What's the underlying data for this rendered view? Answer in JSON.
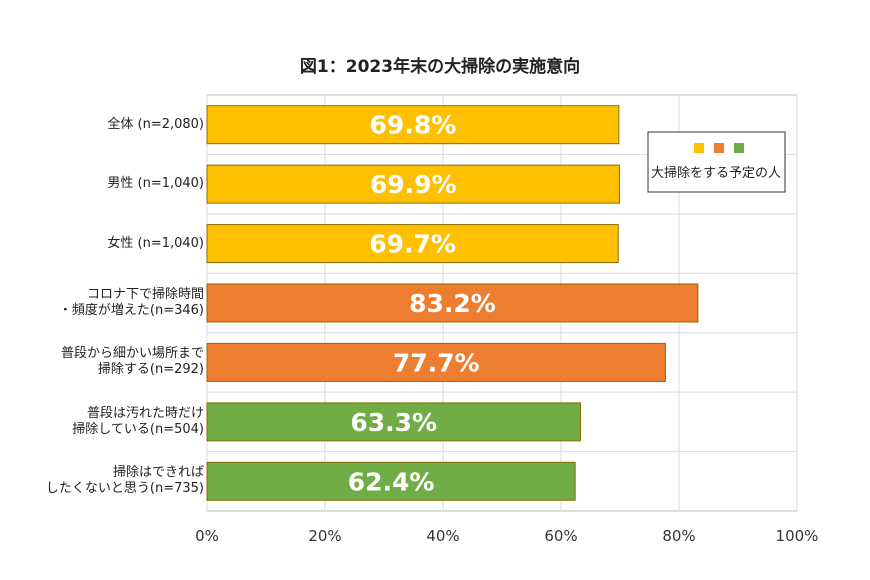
{
  "chart_data": {
    "type": "bar",
    "orientation": "horizontal",
    "title": "図1：2023年末の大掃除の実施意向",
    "categories": [
      "全体 (n=2,080)",
      "男性 (n=1,040)",
      "女性 (n=1,040)",
      "コロナ下で掃除時間\n・頻度が増えた(n=346)",
      "普段から細かい場所まで\n掃除する(n=292)",
      "普段は汚れた時だけ\n掃除している(n=504)",
      "掃除はできれば\nしたくないと思う(n=735)"
    ],
    "values": [
      69.8,
      69.9,
      69.7,
      83.2,
      77.7,
      63.3,
      62.4
    ],
    "value_labels": [
      "69.8%",
      "69.9%",
      "69.7%",
      "83.2%",
      "77.7%",
      "63.3%",
      "62.4%"
    ],
    "colors": [
      "#FFC000",
      "#FFC000",
      "#FFC000",
      "#ED7D31",
      "#ED7D31",
      "#70AD47",
      "#70AD47"
    ],
    "legend": "大掃除をする予定の人",
    "xlim": [
      0,
      100
    ],
    "xticks": [
      {
        "value": 0,
        "label": "0%"
      },
      {
        "value": 20,
        "label": "20%"
      },
      {
        "value": 40,
        "label": "40%"
      },
      {
        "value": 60,
        "label": "60%"
      },
      {
        "value": 80,
        "label": "80%"
      },
      {
        "value": 100,
        "label": "100%"
      }
    ],
    "grid": true
  }
}
